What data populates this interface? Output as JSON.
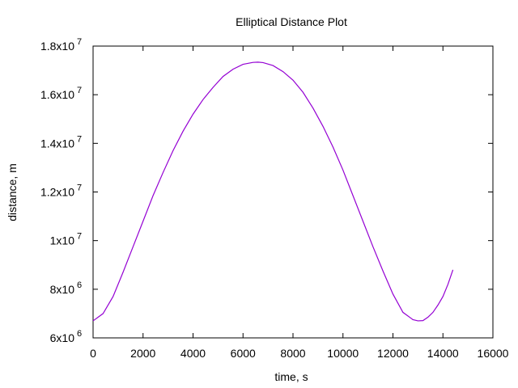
{
  "chart_data": {
    "type": "line",
    "title": "Elliptical Distance Plot",
    "xlabel": "time, s",
    "ylabel": "distance, m",
    "xlim": [
      0,
      16000
    ],
    "ylim": [
      6000000,
      18000000
    ],
    "grid": false,
    "line_color": "#9400d3",
    "x_ticks": [
      {
        "value": 0,
        "label": "0"
      },
      {
        "value": 2000,
        "label": "2000"
      },
      {
        "value": 4000,
        "label": "4000"
      },
      {
        "value": 6000,
        "label": "6000"
      },
      {
        "value": 8000,
        "label": "8000"
      },
      {
        "value": 10000,
        "label": "10000"
      },
      {
        "value": 12000,
        "label": "12000"
      },
      {
        "value": 14000,
        "label": "14000"
      },
      {
        "value": 16000,
        "label": "16000"
      }
    ],
    "y_ticks": [
      {
        "value": 6000000,
        "mantissa": "6x10",
        "exp": "6"
      },
      {
        "value": 8000000,
        "mantissa": "8x10",
        "exp": "6"
      },
      {
        "value": 10000000,
        "mantissa": "1x10",
        "exp": "7"
      },
      {
        "value": 12000000,
        "mantissa": "1.2x10",
        "exp": "7"
      },
      {
        "value": 14000000,
        "mantissa": "1.4x10",
        "exp": "7"
      },
      {
        "value": 16000000,
        "mantissa": "1.6x10",
        "exp": "7"
      },
      {
        "value": 18000000,
        "mantissa": "1.8x10",
        "exp": "7"
      }
    ],
    "series": [
      {
        "x": [
          0,
          400,
          800,
          1200,
          1600,
          2000,
          2400,
          2800,
          3200,
          3600,
          4000,
          4400,
          4800,
          5200,
          5600,
          6000,
          6400,
          6600,
          6800,
          7200,
          7600,
          8000,
          8400,
          8800,
          9200,
          9600,
          10000,
          10400,
          10800,
          11200,
          11600,
          12000,
          12400,
          12800,
          13000,
          13200,
          13400,
          13600,
          13800,
          14000,
          14200,
          14400
        ],
        "y": [
          6700000,
          7000000,
          7700000,
          8700000,
          9750000,
          10800000,
          11850000,
          12800000,
          13700000,
          14500000,
          15200000,
          15800000,
          16300000,
          16750000,
          17050000,
          17250000,
          17330000,
          17340000,
          17320000,
          17200000,
          16950000,
          16600000,
          16100000,
          15450000,
          14700000,
          13850000,
          12900000,
          11850000,
          10800000,
          9750000,
          8750000,
          7800000,
          7050000,
          6750000,
          6700000,
          6710000,
          6850000,
          7050000,
          7350000,
          7700000,
          8200000,
          8800000
        ]
      }
    ]
  }
}
